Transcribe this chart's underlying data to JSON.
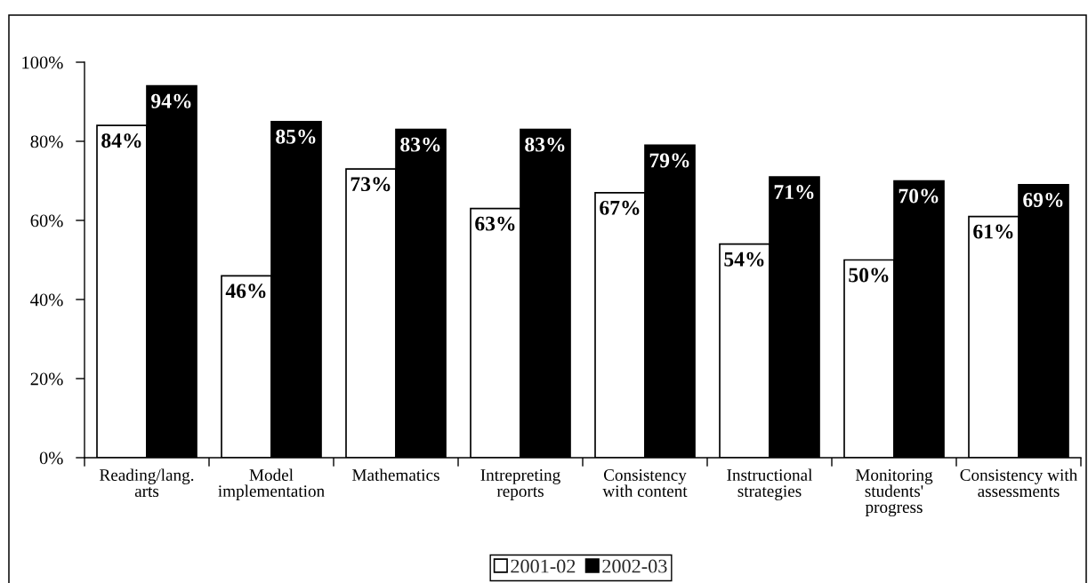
{
  "chart_data": {
    "type": "bar",
    "categories": [
      "Reading/lang.\narts",
      "Model\nimplementation",
      "Mathematics",
      "Intrepreting\nreports",
      "Consistency\nwith content",
      "Instructional\nstrategies",
      "Monitoring\nstudents'\nprogress",
      "Consistency with\nassessments"
    ],
    "series": [
      {
        "name": "2001-02",
        "color": "#ffffff",
        "values": [
          84,
          46,
          73,
          63,
          67,
          54,
          50,
          61
        ],
        "value_labels": [
          "84%",
          "46%",
          "73%",
          "63%",
          "67%",
          "54%",
          "50%",
          "61%"
        ]
      },
      {
        "name": "2002-03",
        "color": "#000000",
        "values": [
          94,
          85,
          83,
          83,
          79,
          71,
          70,
          69
        ],
        "value_labels": [
          "94%",
          "85%",
          "83%",
          "83%",
          "79%",
          "71%",
          "70%",
          "69%"
        ]
      }
    ],
    "ylim": [
      0,
      100
    ],
    "yticks": [
      {
        "value": 0,
        "label": "0%"
      },
      {
        "value": 20,
        "label": "20%"
      },
      {
        "value": 40,
        "label": "40%"
      },
      {
        "value": 60,
        "label": "60%"
      },
      {
        "value": 80,
        "label": "80%"
      },
      {
        "value": 100,
        "label": "100%"
      }
    ],
    "legend": "bottom"
  }
}
